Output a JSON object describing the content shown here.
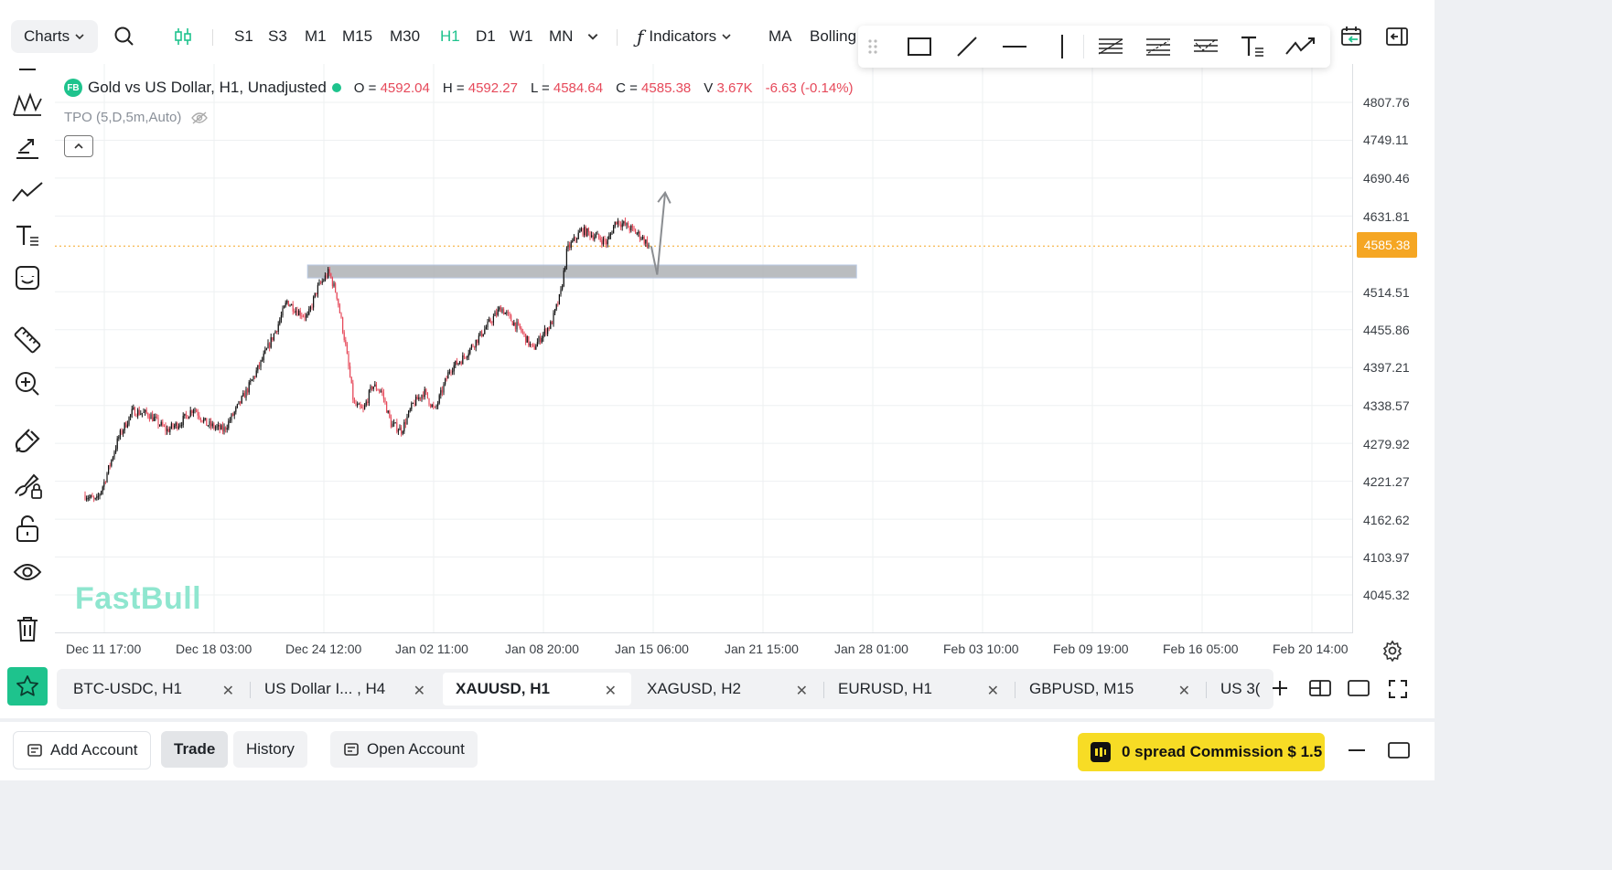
{
  "toolbar": {
    "charts_label": "Charts",
    "timeframes": [
      "S1",
      "S3",
      "M1",
      "M15",
      "M30",
      "H1",
      "D1",
      "W1",
      "MN"
    ],
    "active_timeframe": "H1",
    "indicators_label": "Indicators",
    "ma_label": "MA",
    "bollinger_label": "Bolling"
  },
  "legend": {
    "badge": "FB",
    "title": "Gold vs US Dollar, H1, Unadjusted",
    "o_label": "O =",
    "o_value": "4592.04",
    "h_label": "H =",
    "h_value": "4592.27",
    "l_label": "L =",
    "l_value": "4584.64",
    "c_label": "C =",
    "c_value": "4585.38",
    "v_label": "V",
    "v_value": "3.67K",
    "change": "-6.63 (-0.14%)",
    "tpo": "TPO (5,D,5m,Auto)"
  },
  "watermark": "FastBull",
  "price_axis": [
    "4807.76",
    "4749.11",
    "4690.46",
    "4631.81",
    "4514.51",
    "4455.86",
    "4397.21",
    "4338.57",
    "4279.92",
    "4221.27",
    "4162.62",
    "4103.97",
    "4045.32"
  ],
  "current_price": "4585.38",
  "time_axis": [
    "Dec 11 17:00",
    "Dec 18 03:00",
    "Dec 24 12:00",
    "Jan 02 11:00",
    "Jan 08 20:00",
    "Jan 15 06:00",
    "Jan 21 15:00",
    "Jan 28 01:00",
    "Feb 03 10:00",
    "Feb 09 19:00",
    "Feb 16 05:00",
    "Feb 20 14:00"
  ],
  "chart_data": {
    "type": "candlestick",
    "symbol": "XAUUSD",
    "timeframe": "H1",
    "ylim": [
      4020,
      4830
    ],
    "x_labels": [
      "Dec 11 17:00",
      "Dec 18 03:00",
      "Dec 24 12:00",
      "Jan 02 11:00",
      "Jan 08 20:00",
      "Jan 15 06:00"
    ],
    "colors": {
      "up": "#111111",
      "down": "#e6495a"
    },
    "path": [
      {
        "x": "Dec 10 12:00",
        "y": 4200
      },
      {
        "x": "Dec 11 05:00",
        "y": 4190
      },
      {
        "x": "Dec 11 17:00",
        "y": 4220
      },
      {
        "x": "Dec 12 15:00",
        "y": 4290
      },
      {
        "x": "Dec 13 12:00",
        "y": 4330
      },
      {
        "x": "Dec 14 12:00",
        "y": 4325
      },
      {
        "x": "Dec 15 15:00",
        "y": 4300
      },
      {
        "x": "Dec 16 12:00",
        "y": 4312
      },
      {
        "x": "Dec 17 08:00",
        "y": 4335
      },
      {
        "x": "Dec 18 03:00",
        "y": 4310
      },
      {
        "x": "Dec 19 05:00",
        "y": 4300
      },
      {
        "x": "Dec 19 23:00",
        "y": 4330
      },
      {
        "x": "Dec 20 18:00",
        "y": 4365
      },
      {
        "x": "Dec 21 16:00",
        "y": 4410
      },
      {
        "x": "Dec 22 14:00",
        "y": 4460
      },
      {
        "x": "Dec 23 05:00",
        "y": 4500
      },
      {
        "x": "Dec 23 20:00",
        "y": 4485
      },
      {
        "x": "Dec 24 12:00",
        "y": 4475
      },
      {
        "x": "Dec 25 03:00",
        "y": 4520
      },
      {
        "x": "Dec 25 20:00",
        "y": 4545
      },
      {
        "x": "Dec 26 08:00",
        "y": 4510
      },
      {
        "x": "Dec 26 20:00",
        "y": 4440
      },
      {
        "x": "Dec 27 10:00",
        "y": 4340
      },
      {
        "x": "Dec 28 00:00",
        "y": 4330
      },
      {
        "x": "Dec 28 14:00",
        "y": 4370
      },
      {
        "x": "Dec 29 04:00",
        "y": 4360
      },
      {
        "x": "Dec 29 18:00",
        "y": 4310
      },
      {
        "x": "Dec 30 10:00",
        "y": 4300
      },
      {
        "x": "Dec 31 03:00",
        "y": 4340
      },
      {
        "x": "Dec 31 20:00",
        "y": 4360
      },
      {
        "x": "Jan 01 12:00",
        "y": 4330
      },
      {
        "x": "Jan 02 11:00",
        "y": 4395
      },
      {
        "x": "Jan 03 05:00",
        "y": 4410
      },
      {
        "x": "Jan 04 00:00",
        "y": 4435
      },
      {
        "x": "Jan 04 18:00",
        "y": 4460
      },
      {
        "x": "Jan 05 16:00",
        "y": 4490
      },
      {
        "x": "Jan 06 08:00",
        "y": 4470
      },
      {
        "x": "Jan 06 22:00",
        "y": 4455
      },
      {
        "x": "Jan 07 16:00",
        "y": 4425
      },
      {
        "x": "Jan 08 08:00",
        "y": 4450
      },
      {
        "x": "Jan 08 20:00",
        "y": 4465
      },
      {
        "x": "Jan 09 10:00",
        "y": 4510
      },
      {
        "x": "Jan 09 20:00",
        "y": 4580
      },
      {
        "x": "Jan 10 18:00",
        "y": 4610
      },
      {
        "x": "Jan 11 16:00",
        "y": 4600
      },
      {
        "x": "Jan 12 08:00",
        "y": 4590
      },
      {
        "x": "Jan 12 22:00",
        "y": 4625
      },
      {
        "x": "Jan 13 16:00",
        "y": 4615
      },
      {
        "x": "Jan 14 12:00",
        "y": 4600
      },
      {
        "x": "Jan 15 00:00",
        "y": 4585
      }
    ],
    "zone": {
      "x_start": "Dec 24 12:00",
      "x_end": "Jan 28 01:00",
      "y_top": 4556,
      "y_bottom": 4536
    },
    "projection": [
      {
        "x": "Jan 15 03:00",
        "y": 4585
      },
      {
        "x": "Jan 15 12:00",
        "y": 4541
      },
      {
        "x": "Jan 16 00:00",
        "y": 4668
      }
    ]
  },
  "tabs": [
    "BTC-USDC, H1",
    "US Dollar I... , H4",
    "XAUUSD, H1",
    "XAGUSD, H2",
    "EURUSD, H1",
    "GBPUSD, M15",
    "US 3("
  ],
  "active_tab": "XAUUSD, H1",
  "bottom": {
    "add_account": "Add Account",
    "trade": "Trade",
    "history": "History",
    "open_account": "Open Account",
    "promo": "0 spread Commission $ 1.5"
  }
}
